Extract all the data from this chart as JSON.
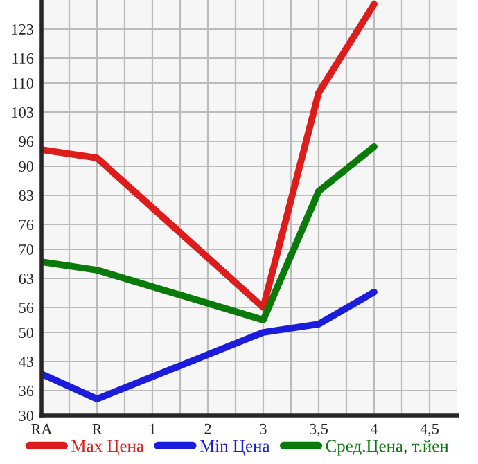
{
  "chart_data": {
    "type": "line",
    "categories": [
      "RA",
      "R",
      "1",
      "2",
      "3",
      "3,5",
      "4",
      "4,5"
    ],
    "series": [
      {
        "name": "Max Цена",
        "color": "#dd1c1c",
        "values": [
          94,
          92,
          null,
          null,
          56,
          107.7,
          129,
          null
        ]
      },
      {
        "name": "Min Цена",
        "color": "#1c1cdd",
        "values": [
          40,
          34,
          null,
          null,
          50,
          52,
          59.7,
          null
        ]
      },
      {
        "name": "Сред.Цена, т.йен",
        "color": "#0a7a0a",
        "values": [
          67,
          65,
          null,
          null,
          53,
          84,
          94.7,
          null
        ]
      }
    ],
    "ylim": [
      30,
      130
    ],
    "yticks": [
      30,
      36,
      43,
      50,
      56,
      63,
      70,
      76,
      83,
      90,
      96,
      103,
      110,
      116,
      123
    ],
    "grid": true,
    "legend": "bottom",
    "line_style": "solid",
    "marker": "none"
  }
}
